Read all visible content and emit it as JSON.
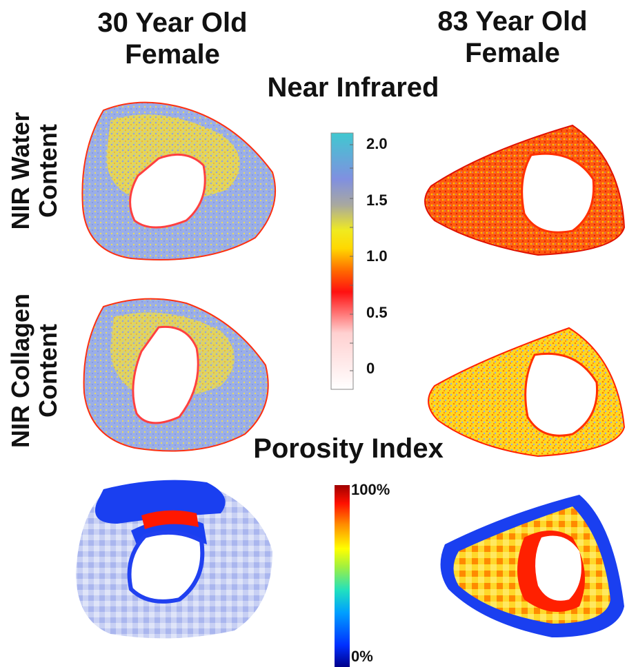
{
  "columns": {
    "left_title_line1": "30 Year Old",
    "left_title_line2": "Female",
    "right_title_line1": "83 Year Old",
    "right_title_line2": "Female"
  },
  "sections": {
    "nir_title": "Near Infrared",
    "porosity_title": "Porosity Index"
  },
  "rows": {
    "water_line1": "NIR Water",
    "water_line2": "Content",
    "collagen_line1": "NIR Collagen",
    "collagen_line2": "Content"
  },
  "nir_colorbar": {
    "ticks": [
      "2.0",
      "1.5",
      "1.0",
      "0.5",
      "0"
    ],
    "colors": [
      "#ffffff",
      "#ff9a9a",
      "#ff0000",
      "#ff9800",
      "#ffe600",
      "#b9b98a",
      "#7f93e6",
      "#4ec5cf"
    ]
  },
  "porosity_colorbar": {
    "max_label": "100%",
    "min_label": "0%",
    "colors": [
      "#00008b",
      "#0050ff",
      "#00c8ff",
      "#40e080",
      "#ffff00",
      "#ff8c00",
      "#ff0000",
      "#a00000"
    ]
  }
}
